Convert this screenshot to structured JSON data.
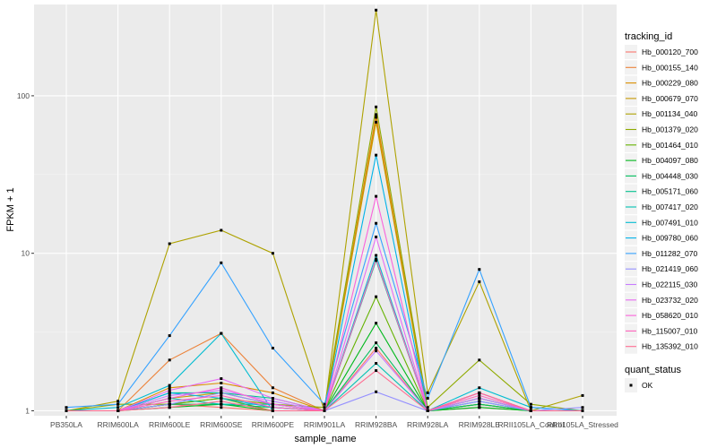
{
  "chart_data": {
    "type": "line",
    "xlabel": "sample_name",
    "ylabel": "FPKM + 1",
    "y_scale": "log10",
    "ylim": [
      0.93,
      380
    ],
    "yticks": [
      {
        "value": 1,
        "label": "1"
      },
      {
        "value": 10,
        "label": "10"
      },
      {
        "value": 100,
        "label": "100"
      }
    ],
    "grid": true,
    "legend_position": "right",
    "categories": [
      "PB350LA",
      "RRIM600LA",
      "RRIM600LE",
      "RRIM600SE",
      "RRIM600PE",
      "RRIM901LA",
      "RRIM928BA",
      "RRIM928LA",
      "RRIM928LE",
      "RRII105LA_Control",
      "RRII105LA_Stressed"
    ],
    "series": [
      {
        "name": "Hb_000120_700",
        "color": "#F8766D",
        "values": [
          1.0,
          1.0,
          1.1,
          1.05,
          1.0,
          1.0,
          2.5,
          1.0,
          1.05,
          1.0,
          1.0
        ]
      },
      {
        "name": "Hb_000155_140",
        "color": "#EC8239",
        "values": [
          1.0,
          1.0,
          2.1,
          3.1,
          1.4,
          1.0,
          76,
          1.0,
          1.3,
          1.0,
          1.0
        ]
      },
      {
        "name": "Hb_000229_080",
        "color": "#DB8E00",
        "values": [
          1.0,
          1.0,
          1.4,
          1.5,
          1.3,
          1.0,
          73,
          1.0,
          1.2,
          1.0,
          1.0
        ]
      },
      {
        "name": "Hb_000679_070",
        "color": "#C79800",
        "values": [
          1.0,
          1.0,
          1.2,
          1.3,
          1.1,
          1.0,
          68,
          1.0,
          1.1,
          1.0,
          1.0
        ]
      },
      {
        "name": "Hb_001134_040",
        "color": "#AEA200",
        "values": [
          1.0,
          1.15,
          11.5,
          14,
          10,
          1.0,
          350,
          1.3,
          6.6,
          1.0,
          1.25
        ]
      },
      {
        "name": "Hb_001379_020",
        "color": "#8FAA00",
        "values": [
          1.0,
          1.1,
          1.1,
          1.2,
          1.1,
          1.05,
          85,
          1.05,
          2.1,
          1.1,
          1.0
        ]
      },
      {
        "name": "Hb_001464_010",
        "color": "#64B200",
        "values": [
          1.0,
          1.0,
          1.1,
          1.2,
          1.0,
          1.0,
          5.3,
          1.0,
          1.1,
          1.0,
          1.0
        ]
      },
      {
        "name": "Hb_004097_080",
        "color": "#00B81B",
        "values": [
          1.0,
          1.0,
          1.05,
          1.1,
          1.0,
          1.0,
          3.6,
          1.0,
          1.05,
          1.0,
          1.0
        ]
      },
      {
        "name": "Hb_004448_030",
        "color": "#00BD5C",
        "values": [
          1.0,
          1.0,
          1.1,
          1.1,
          1.05,
          1.0,
          2.7,
          1.0,
          1.1,
          1.0,
          1.0
        ]
      },
      {
        "name": "Hb_005171_060",
        "color": "#00C08E",
        "values": [
          1.0,
          1.0,
          1.3,
          1.3,
          1.2,
          1.0,
          9.0,
          1.0,
          1.2,
          1.0,
          1.0
        ]
      },
      {
        "name": "Hb_007417_020",
        "color": "#00C1B2",
        "values": [
          1.0,
          1.0,
          1.2,
          1.1,
          1.1,
          1.0,
          2.0,
          1.0,
          1.15,
          1.0,
          1.0
        ]
      },
      {
        "name": "Hb_007491_010",
        "color": "#00BCD1",
        "values": [
          1.0,
          1.05,
          1.45,
          3.1,
          1.0,
          1.0,
          9.7,
          1.0,
          1.4,
          1.05,
          1.0
        ]
      },
      {
        "name": "Hb_009780_060",
        "color": "#00B3E9",
        "values": [
          1.0,
          1.0,
          1.3,
          1.2,
          1.05,
          1.0,
          42,
          1.0,
          1.3,
          1.0,
          1.0
        ]
      },
      {
        "name": "Hb_011282_070",
        "color": "#35A2FF",
        "values": [
          1.05,
          1.1,
          3.0,
          8.7,
          2.5,
          1.1,
          15.5,
          1.2,
          7.9,
          1.05,
          1.0
        ]
      },
      {
        "name": "Hb_021419_060",
        "color": "#9590FF",
        "values": [
          1.0,
          1.0,
          1.1,
          1.3,
          1.1,
          1.0,
          1.32,
          1.0,
          1.15,
          1.0,
          1.05
        ]
      },
      {
        "name": "Hb_022115_030",
        "color": "#C77CFF",
        "values": [
          1.0,
          1.0,
          1.25,
          1.35,
          1.15,
          1.0,
          2.4,
          1.0,
          1.2,
          1.0,
          1.0
        ]
      },
      {
        "name": "Hb_023732_020",
        "color": "#E76BF3",
        "values": [
          1.0,
          1.0,
          1.35,
          1.6,
          1.2,
          1.0,
          12.7,
          1.0,
          1.3,
          1.0,
          1.0
        ]
      },
      {
        "name": "Hb_058620_010",
        "color": "#FA62DB",
        "values": [
          1.0,
          1.0,
          1.2,
          1.4,
          1.1,
          1.0,
          23,
          1.0,
          1.3,
          1.0,
          1.0
        ]
      },
      {
        "name": "Hb_115007_010",
        "color": "#FF62BC",
        "values": [
          1.0,
          1.0,
          1.15,
          1.25,
          1.05,
          1.0,
          9.2,
          1.0,
          1.25,
          1.0,
          1.0
        ]
      },
      {
        "name": "Hb_135392_010",
        "color": "#FF6C91",
        "values": [
          1.0,
          1.0,
          1.05,
          1.15,
          1.0,
          1.0,
          1.8,
          1.0,
          1.3,
          1.0,
          1.0
        ]
      }
    ],
    "quant_status_legend": {
      "title": "quant_status",
      "items": [
        "OK"
      ]
    }
  },
  "legend": {
    "title": "tracking_id"
  },
  "colors": {
    "panel": "#EBEBEB",
    "grid_major": "#FFFFFF",
    "grid_minor": "#F5F5F5",
    "point": "#000000"
  }
}
